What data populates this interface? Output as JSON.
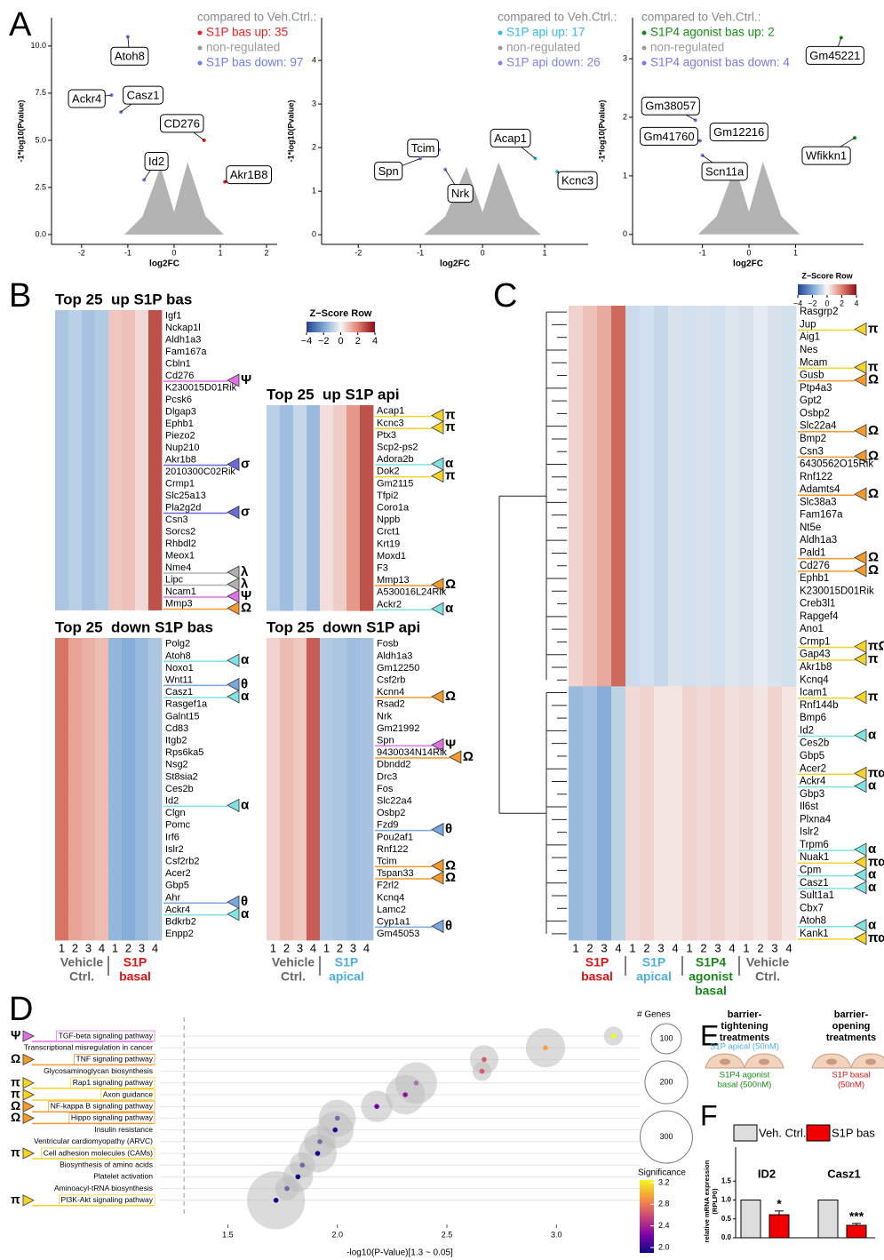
{
  "panel_labels": [
    "A",
    "B",
    "C",
    "D",
    "E",
    "F"
  ],
  "marker_colors": {
    "α": "#7fe3e3",
    "θ": "#78a8e0",
    "π": "#f5d327",
    "Ω": "#f39a2b",
    "Ψ": "#e070e6",
    "σ": "#6a6ad8",
    "λ": "#b0b0b0"
  },
  "z_scale": {
    "title": "Z−Score Row",
    "ticks": [
      {
        "value": -4,
        "label": "−4"
      },
      {
        "value": -2,
        "label": "−2"
      },
      0,
      2,
      4
    ],
    "colors": [
      "#23408e",
      "#7aa6d4",
      "#f7f7f7",
      "#e0806e",
      "#8c0c16"
    ]
  },
  "panel_e": {
    "groups": [
      {
        "title_lines": [
          "barrier-",
          "tightening",
          "treatments"
        ],
        "items": [
          {
            "lines": [
              "S1P apical (50nM)"
            ],
            "color": "#4ab0e8"
          },
          {
            "lines": [
              "S1P4 agonist",
              "basal (500nM)"
            ],
            "color": "#1a8a1a"
          }
        ]
      },
      {
        "title_lines": [
          "barrier-",
          "opening",
          "treatments"
        ],
        "items": [
          {
            "lines": [
              "S1P basal",
              "(50nM)"
            ],
            "color": "#e81010"
          }
        ]
      }
    ]
  },
  "chart_data": [
    {
      "type": "scatter",
      "x_label": "log2FC",
      "y_label": "-1*log10(Pvalue)",
      "legend_title": "compared to Veh.Ctrl.:",
      "xlim": [
        -2.65,
        2.23
      ],
      "xticks": [
        -2,
        -1,
        0,
        1,
        2
      ],
      "ylim": [
        -0.52,
        11.5
      ],
      "yticks": [
        {
          "value": 0,
          "label": "0.0"
        },
        {
          "value": 2.5,
          "label": "2.5"
        },
        {
          "value": 5,
          "label": "5.0"
        },
        {
          "value": 7.5,
          "label": "7.5"
        },
        {
          "value": 10,
          "label": "10.0"
        }
      ],
      "series": [
        {
          "name": "S1P bas up: 35",
          "color": "#f01e1e",
          "labels": [
            "CD276",
            "Akr1B8"
          ],
          "x": [
            0.65,
            1.1
          ],
          "y": [
            5.0,
            2.8
          ]
        },
        {
          "name": "non-regulated",
          "color": "#9a9a9a",
          "labels": [],
          "x": [],
          "y": []
        },
        {
          "name": "S1P bas down: 97",
          "color": "#6a7ff0",
          "labels": [
            "Atoh8",
            "Ackr4",
            "Casz1",
            "Id2"
          ],
          "x": [
            -1.0,
            -1.35,
            -1.15,
            -0.65
          ],
          "y": [
            10.5,
            7.4,
            6.5,
            2.9
          ]
        }
      ]
    },
    {
      "type": "scatter",
      "x_label": "log2FC",
      "y_label": "-1*log10(Pvalue)",
      "legend_title": "compared to Veh.Ctrl.:",
      "xlim": [
        -2.59,
        1.7
      ],
      "xticks": [
        -2,
        -1,
        0,
        1
      ],
      "ylim": [
        -0.22,
        4.98
      ],
      "yticks": [
        0,
        1,
        2,
        3,
        4
      ],
      "series": [
        {
          "name": "S1P api up: 17",
          "color": "#33bbee",
          "labels": [
            "Acap1",
            "Kcnc3"
          ],
          "x": [
            0.85,
            1.2
          ],
          "y": [
            1.75,
            1.45
          ]
        },
        {
          "name": "non-regulated",
          "color": "#9a9a9a",
          "labels": [],
          "x": [],
          "y": []
        },
        {
          "name": "S1P api down: 26",
          "color": "#8080ee",
          "labels": [
            "Tcim",
            "Spn",
            "Nrk"
          ],
          "x": [
            -0.7,
            -1.0,
            -0.6
          ],
          "y": [
            1.95,
            1.75,
            1.5
          ]
        }
      ]
    },
    {
      "type": "scatter",
      "x_label": "log2FC",
      "y_label": "-1*log10(Pvalue)",
      "legend_title": "compared to Veh.Ctrl.:",
      "xlim": [
        -2.5,
        2.46
      ],
      "xticks": [
        -1,
        0,
        1
      ],
      "ylim": [
        -0.17,
        3.7
      ],
      "yticks": [
        0,
        1,
        2,
        3
      ],
      "series": [
        {
          "name": "S1P4 agonist bas up: 2",
          "color": "#139013",
          "labels": [
            "Gm45221",
            "Wfikkn1"
          ],
          "x": [
            1.98,
            2.27
          ],
          "y": [
            3.36,
            1.65
          ]
        },
        {
          "name": "non-regulated",
          "color": "#9a9a9a",
          "labels": [],
          "x": [],
          "y": []
        },
        {
          "name": "S1P4 agonist bas down: 4",
          "color": "#7777ee",
          "labels": [
            "Gm38057",
            "Gm41760",
            "Gm12216",
            "Scn11a"
          ],
          "x": [
            -1.15,
            -1.05,
            -0.75,
            -1.0
          ],
          "y": [
            1.95,
            1.6,
            1.75,
            1.35
          ]
        }
      ]
    },
    {
      "type": "heatmap",
      "title": "Top 25  up S1P bas",
      "rows": [
        "Igf1",
        "Nckap1l",
        "Aldh1a3",
        "Fam167a",
        "Cbln1",
        "Cd276",
        "K230015D01Rik",
        "Pcsk6",
        "Dlgap3",
        "Ephb1",
        "Piezo2",
        "Nup210",
        "Akr1b8",
        "2010300C02Rik",
        "Crmp1",
        "Slc25a13",
        "Pla2g2d",
        "Csn3",
        "Sorcs2",
        "Rhbdl2",
        "Meox1",
        "Nme4",
        "Lipc",
        "Ncam1",
        "Mmp3"
      ],
      "markers": [
        null,
        null,
        null,
        null,
        null,
        "Ψ",
        null,
        null,
        null,
        null,
        null,
        null,
        "σ",
        null,
        null,
        null,
        "σ",
        null,
        null,
        null,
        null,
        "λ",
        "λ",
        "Ψ",
        "Ω"
      ],
      "column_z": [
        -1.2,
        -1.0,
        -1.3,
        -1.1,
        0.8,
        0.9,
        0.5,
        2.8
      ]
    },
    {
      "type": "heatmap",
      "title": "Top 25  down S1P bas",
      "rows": [
        "Polg2",
        "Atoh8",
        "Noxo1",
        "Wnt11",
        "Casz1",
        "Rasgef1a",
        "Galnt15",
        "Cd83",
        "Itgb2",
        "Rps6ka5",
        "Nsg2",
        "St8sia2",
        "Ces2b",
        "Id2",
        "Clgn",
        "Pomc",
        "Irf6",
        "Islr2",
        "Csf2rb2",
        "Acer2",
        "Gbp5",
        "Ahr",
        "Ackr4",
        "Bdkrb2",
        "Enpp2"
      ],
      "markers": [
        null,
        "α",
        null,
        "θ",
        "α",
        null,
        null,
        null,
        null,
        null,
        null,
        null,
        null,
        "α",
        null,
        null,
        null,
        null,
        null,
        null,
        null,
        "θ",
        "α",
        null,
        null
      ],
      "column_z": [
        2.2,
        1.4,
        1.2,
        1.0,
        -1.6,
        -1.8,
        -1.5,
        -1.2
      ],
      "column_labels": [
        "1",
        "2",
        "3",
        "4",
        "1",
        "2",
        "3",
        "4"
      ],
      "groups": [
        {
          "lines": [
            "Vehicle",
            "Ctrl."
          ],
          "color": "#666666"
        },
        {
          "lines": [
            "S1P",
            "basal"
          ],
          "color": "#e81010"
        }
      ]
    },
    {
      "type": "heatmap",
      "title": "Top 25  up S1P api",
      "rows": [
        "Acap1",
        "Kcnc3",
        "Ptx3",
        "Scp2-ps2",
        "Adora2b",
        "Dok2",
        "Gm2115",
        "Tfpi2",
        "Coro1a",
        "Nppb",
        "Crct1",
        "Krt19",
        "Moxd1",
        "F3",
        "Mmp13",
        "A530016L24Rik",
        "Ackr2"
      ],
      "markers": [
        "π",
        "π",
        null,
        null,
        "α",
        "π",
        null,
        null,
        null,
        null,
        null,
        null,
        null,
        null,
        "Ω",
        null,
        "α"
      ],
      "column_z": [
        -1.0,
        -1.4,
        -0.8,
        -1.5,
        0.4,
        0.7,
        1.6,
        2.8
      ]
    },
    {
      "type": "heatmap",
      "title": "Top 25  down S1P api",
      "rows": [
        "Fosb",
        "Aldh1a3",
        "Gm12250",
        "Csf2rb",
        "Kcnn4",
        "Rsad2",
        "Nrk",
        "Gm21992",
        "Spn",
        "9430034N14Rik",
        "Dbndd2",
        "Drc3",
        "Fos",
        "Slc22a4",
        "Osbp2",
        "Fzd9",
        "Pou2af1",
        "Rnf122",
        "Tcim",
        "Tspan33",
        "F2rl2",
        "Kcnq4",
        "Lamc2",
        "Cyp1a1",
        "Gm45053"
      ],
      "markers": [
        null,
        null,
        null,
        null,
        "Ω",
        null,
        null,
        null,
        "Ψ",
        "Ω",
        null,
        null,
        null,
        null,
        null,
        "θ",
        null,
        null,
        "Ω",
        "Ω",
        null,
        null,
        null,
        "θ",
        null
      ],
      "column_z": [
        0.6,
        1.0,
        0.8,
        2.6,
        -1.1,
        -1.2,
        -1.4,
        -1.3
      ],
      "column_labels": [
        "1",
        "2",
        "3",
        "4",
        "1",
        "2",
        "3",
        "4"
      ],
      "groups": [
        {
          "lines": [
            "Vehicle",
            "Ctrl."
          ],
          "color": "#666666"
        },
        {
          "lines": [
            "S1P",
            "apical"
          ],
          "color": "#4ab0e8"
        }
      ]
    },
    {
      "type": "heatmap",
      "rows": [
        "Rasgrp2",
        "Jup",
        "Aig1",
        "Nes",
        "Mcam",
        "Gusb",
        "Ptp4a3",
        "Gpt2",
        "Osbp2",
        "Slc22a4",
        "Bmp2",
        "Csn3",
        "6430562O15Rik",
        "Rnf122",
        "Adamts4",
        "Slc38a3",
        "Fam167a",
        "Nt5e",
        "Aldh1a3",
        "Pald1",
        "Cd276",
        "Ephb1",
        "K230015D01Rik",
        "Creb3l1",
        "Rapgef4",
        "Ano1",
        "Crmp1",
        "Gap43",
        "Akr1b8",
        "Kcnq4",
        "Icam1",
        "Rnf144b",
        "Bmp6",
        "Id2",
        "Ces2b",
        "Gbp5",
        "Acer2",
        "Ackr4",
        "Gbp3",
        "Il6st",
        "Plxna4",
        "Islr2",
        "Trpm6",
        "Nuak1",
        "Cpm",
        "Casz1",
        "Sult1a1",
        "Cbx7",
        "Atoh8",
        "Kank1"
      ],
      "markers": [
        null,
        "π",
        null,
        null,
        "π",
        "Ω",
        null,
        null,
        null,
        "Ω",
        null,
        "Ω",
        null,
        null,
        "Ω",
        null,
        null,
        null,
        null,
        "Ω",
        "Ω",
        null,
        null,
        null,
        null,
        null,
        "πΩ",
        "π",
        null,
        null,
        "π",
        null,
        null,
        "α",
        null,
        null,
        "πα",
        "α",
        null,
        null,
        null,
        null,
        "α",
        "πα",
        "α",
        "α",
        null,
        null,
        "α",
        "πα"
      ],
      "cluster_sizes": [
        30,
        20
      ],
      "column_z_by_cluster": [
        [
          0.6,
          0.9,
          1.3,
          2.4,
          -0.7,
          -0.6,
          -0.8,
          -0.5,
          -0.6,
          -0.5,
          -0.6,
          -0.4,
          -0.5,
          -0.3,
          -0.5,
          -0.6
        ],
        [
          -1.5,
          -1.3,
          -1.8,
          -0.9,
          0.5,
          0.6,
          0.3,
          0.3,
          0.6,
          0.5,
          0.6,
          0.4,
          0.5,
          0.3,
          0.6,
          0.3
        ]
      ],
      "column_labels": [
        "1",
        "2",
        "3",
        "4",
        "1",
        "2",
        "3",
        "4",
        "1",
        "2",
        "3",
        "4",
        "1",
        "2",
        "3",
        "4"
      ],
      "groups": [
        {
          "lines": [
            "S1P",
            "basal"
          ],
          "color": "#e81010"
        },
        {
          "lines": [
            "S1P",
            "apical"
          ],
          "color": "#4ab0e8"
        },
        {
          "lines": [
            "S1P4",
            "agonist",
            "basal"
          ],
          "color": "#1a8a1a"
        },
        {
          "lines": [
            "Vehicle",
            "Ctrl."
          ],
          "color": "#666666"
        }
      ]
    },
    {
      "type": "bubble",
      "x_label": "-log10(P-Value)[1.3 ~ 0.05]",
      "threshold": 1.3,
      "categories": [
        "TGF-beta signaling pathway",
        "Transcriptional misregulation in cancer",
        "TNF signaling pathway",
        "Glycosaminoglycan biosynthesis",
        "Rap1 signaling pathway",
        "Axon guidance",
        "NF-kappa B signaling pathway",
        "Hippo signaling pathway",
        "Insulin resistance",
        "Ventricular cardiomyopathy (ARVC)",
        "Cell adhesion molecules (CAMs)",
        "Biosynthesis of amino acids",
        "Platelet activation",
        "Aminoacyl-tRNA biosynthesis",
        "PI3K-Akt signaling pathway"
      ],
      "markers": [
        "Ψ",
        null,
        "Ω",
        null,
        "π",
        "π",
        "Ω",
        "Ω",
        null,
        null,
        "π",
        null,
        null,
        null,
        "π"
      ],
      "x": [
        3.26,
        2.95,
        2.67,
        2.66,
        2.36,
        2.31,
        2.18,
        2.0,
        1.99,
        1.92,
        1.91,
        1.84,
        1.82,
        1.77,
        1.72
      ],
      "sizes": [
        40,
        170,
        90,
        40,
        190,
        170,
        110,
        150,
        150,
        110,
        160,
        70,
        100,
        60,
        370
      ],
      "significance": [
        3.26,
        2.95,
        2.67,
        2.66,
        2.36,
        2.31,
        2.18,
        2.0,
        1.99,
        1.92,
        1.91,
        1.84,
        1.82,
        1.77,
        1.72
      ],
      "xlim": [
        1.19,
        3.38
      ],
      "xticks": [
        1.5,
        {
          "value": 2,
          "label": "2.0"
        },
        2.5,
        {
          "value": 3,
          "label": "3.0"
        }
      ],
      "size_legend": {
        "title": "# Genes",
        "values": [
          100,
          200,
          300
        ]
      },
      "color_legend": {
        "title": "Significance",
        "range": [
          1.9,
          3.25
        ],
        "colors": [
          "#0d0887",
          "#7e03a8",
          "#cc4778",
          "#f89540",
          "#f0f921"
        ],
        "ticks": [
          {
            "value": 2,
            "label": "2.0"
          },
          2.4,
          2.8,
          3.2
        ]
      }
    },
    {
      "type": "bar",
      "y_label_lines": [
        "relative mRNA expression",
        "(RPLP0)"
      ],
      "categories": [
        "ID2",
        "Casz1"
      ],
      "ylim": [
        0,
        2.4
      ],
      "yticks": [
        {
          "value": 0,
          "label": "0.0"
        },
        0.5,
        {
          "value": 1,
          "label": "1.0"
        },
        1.5
      ],
      "series": [
        {
          "name": "Veh. Ctrl.",
          "color": "#dddddd",
          "values": [
            1,
            1
          ]
        },
        {
          "name": "S1P bas",
          "color": "#f00000",
          "values": [
            0.61,
            0.33
          ],
          "errors": [
            0.1,
            0.05
          ]
        }
      ],
      "annotations": [
        "*",
        "***"
      ]
    }
  ]
}
